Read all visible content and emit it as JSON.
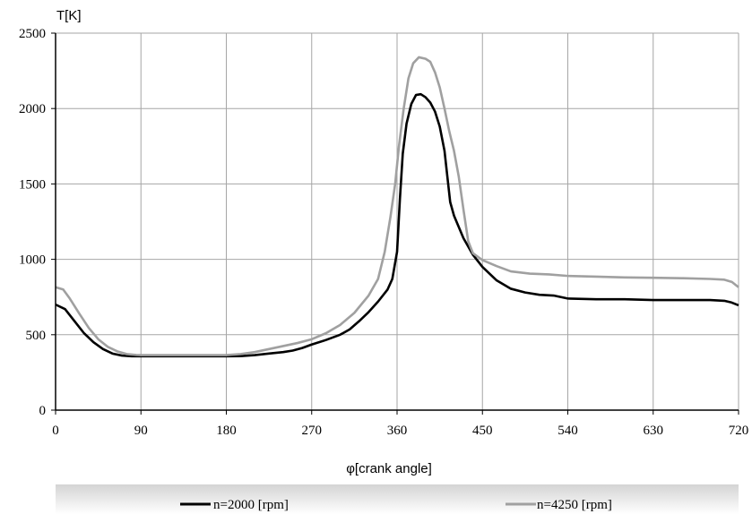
{
  "chart_data": {
    "type": "line",
    "title": "",
    "xlabel": "φ[crank angle]",
    "ylabel": "T[K]",
    "xlim": [
      0,
      720
    ],
    "ylim": [
      0,
      2500
    ],
    "x_ticks": [
      0,
      90,
      180,
      270,
      360,
      450,
      540,
      630,
      720
    ],
    "y_ticks": [
      0,
      500,
      1000,
      1500,
      2000,
      2500
    ],
    "grid": true,
    "legend_position": "bottom",
    "series": [
      {
        "name": "n=2000 [rpm]",
        "color": "#000000",
        "points": [
          [
            0,
            700
          ],
          [
            10,
            670
          ],
          [
            20,
            590
          ],
          [
            30,
            510
          ],
          [
            40,
            450
          ],
          [
            50,
            405
          ],
          [
            60,
            375
          ],
          [
            70,
            362
          ],
          [
            80,
            357
          ],
          [
            90,
            357
          ],
          [
            120,
            357
          ],
          [
            150,
            357
          ],
          [
            180,
            357
          ],
          [
            195,
            358
          ],
          [
            210,
            365
          ],
          [
            225,
            375
          ],
          [
            240,
            385
          ],
          [
            250,
            395
          ],
          [
            260,
            412
          ],
          [
            270,
            435
          ],
          [
            285,
            465
          ],
          [
            300,
            500
          ],
          [
            310,
            535
          ],
          [
            320,
            590
          ],
          [
            330,
            650
          ],
          [
            340,
            720
          ],
          [
            350,
            800
          ],
          [
            355,
            870
          ],
          [
            360,
            1050
          ],
          [
            363,
            1400
          ],
          [
            366,
            1700
          ],
          [
            370,
            1900
          ],
          [
            375,
            2030
          ],
          [
            380,
            2090
          ],
          [
            385,
            2095
          ],
          [
            390,
            2075
          ],
          [
            395,
            2040
          ],
          [
            400,
            1980
          ],
          [
            405,
            1880
          ],
          [
            410,
            1720
          ],
          [
            413,
            1550
          ],
          [
            416,
            1380
          ],
          [
            420,
            1290
          ],
          [
            430,
            1140
          ],
          [
            440,
            1030
          ],
          [
            450,
            950
          ],
          [
            465,
            860
          ],
          [
            480,
            805
          ],
          [
            495,
            780
          ],
          [
            510,
            765
          ],
          [
            525,
            760
          ],
          [
            540,
            740
          ],
          [
            570,
            735
          ],
          [
            600,
            735
          ],
          [
            630,
            730
          ],
          [
            660,
            730
          ],
          [
            690,
            730
          ],
          [
            705,
            725
          ],
          [
            712,
            715
          ],
          [
            720,
            695
          ]
        ]
      },
      {
        "name": "n=4250 [rpm]",
        "color": "#a0a0a0",
        "points": [
          [
            0,
            815
          ],
          [
            8,
            800
          ],
          [
            15,
            740
          ],
          [
            25,
            640
          ],
          [
            35,
            545
          ],
          [
            45,
            470
          ],
          [
            55,
            420
          ],
          [
            65,
            390
          ],
          [
            75,
            372
          ],
          [
            85,
            366
          ],
          [
            90,
            365
          ],
          [
            120,
            365
          ],
          [
            150,
            365
          ],
          [
            180,
            365
          ],
          [
            195,
            372
          ],
          [
            210,
            385
          ],
          [
            225,
            405
          ],
          [
            240,
            425
          ],
          [
            255,
            445
          ],
          [
            270,
            470
          ],
          [
            285,
            510
          ],
          [
            300,
            565
          ],
          [
            315,
            645
          ],
          [
            330,
            760
          ],
          [
            340,
            870
          ],
          [
            347,
            1050
          ],
          [
            353,
            1280
          ],
          [
            358,
            1500
          ],
          [
            362,
            1750
          ],
          [
            367,
            2000
          ],
          [
            372,
            2200
          ],
          [
            377,
            2300
          ],
          [
            383,
            2340
          ],
          [
            390,
            2330
          ],
          [
            395,
            2310
          ],
          [
            400,
            2240
          ],
          [
            405,
            2140
          ],
          [
            410,
            2000
          ],
          [
            415,
            1850
          ],
          [
            420,
            1720
          ],
          [
            425,
            1550
          ],
          [
            430,
            1330
          ],
          [
            435,
            1120
          ],
          [
            440,
            1040
          ],
          [
            450,
            995
          ],
          [
            465,
            955
          ],
          [
            480,
            920
          ],
          [
            500,
            905
          ],
          [
            520,
            900
          ],
          [
            540,
            890
          ],
          [
            570,
            885
          ],
          [
            600,
            880
          ],
          [
            630,
            878
          ],
          [
            660,
            875
          ],
          [
            690,
            870
          ],
          [
            705,
            865
          ],
          [
            713,
            850
          ],
          [
            720,
            815
          ]
        ]
      }
    ]
  }
}
